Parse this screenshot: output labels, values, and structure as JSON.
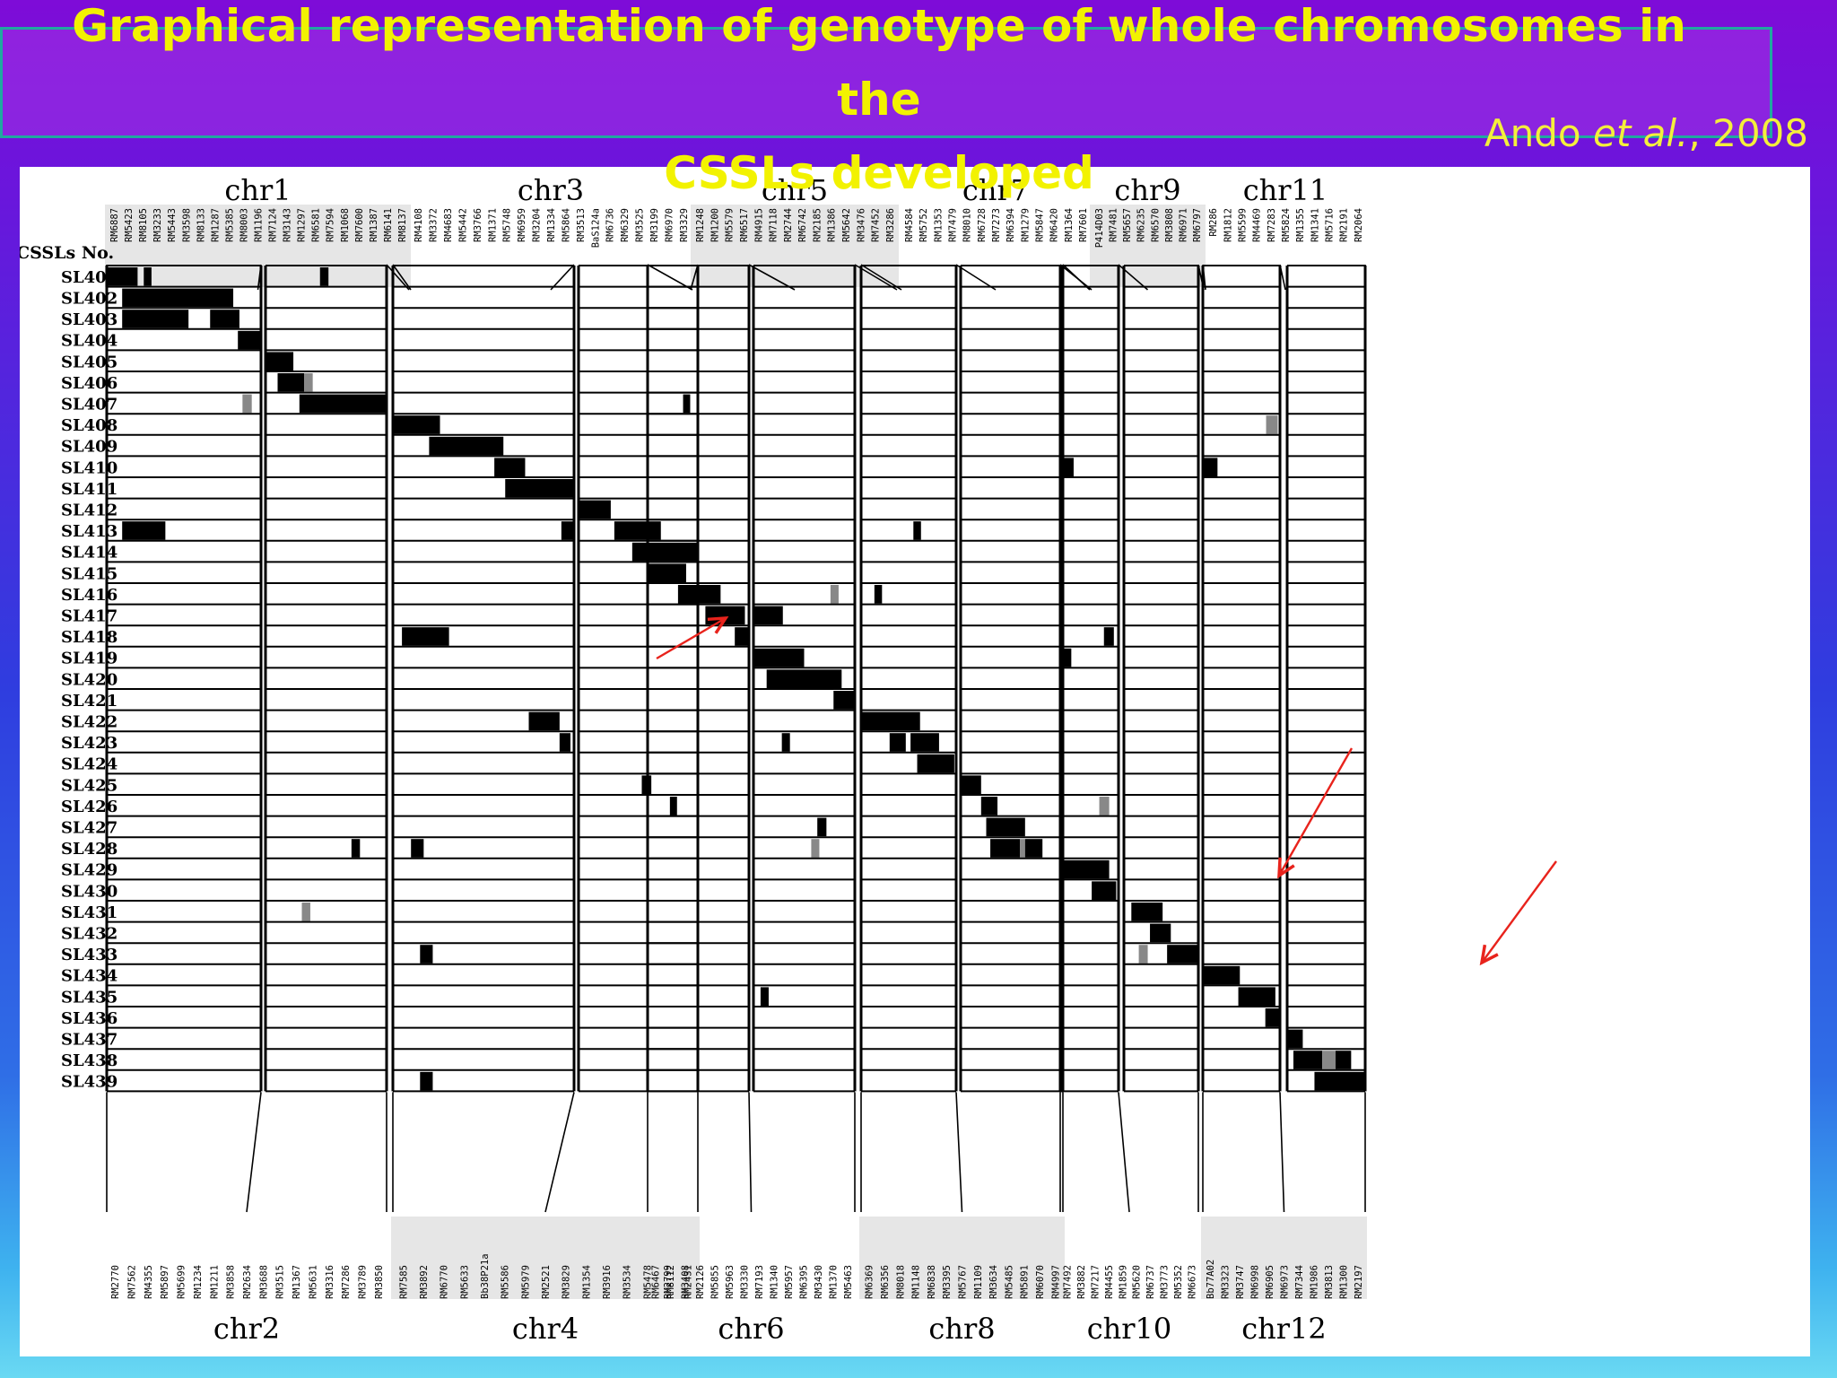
{
  "title": {
    "line1": "Graphical representation of genotype of whole  chromosomes in",
    "line2": "the",
    "line3": "CSSLs developed"
  },
  "citation": {
    "author": "Ando ",
    "etal": "et al.",
    "year": ", 2008"
  },
  "row_header": "CSSLs No.",
  "lines": [
    "SL401",
    "SL402",
    "SL403",
    "SL404",
    "SL405",
    "SL406",
    "SL407",
    "SL408",
    "SL409",
    "SL410",
    "SL411",
    "SL412",
    "SL413",
    "SL414",
    "SL415",
    "SL416",
    "SL417",
    "SL418",
    "SL419",
    "SL420",
    "SL421",
    "SL422",
    "SL423",
    "SL424",
    "SL425",
    "SL426",
    "SL427",
    "SL428",
    "SL429",
    "SL430",
    "SL431",
    "SL432",
    "SL433",
    "SL434",
    "SL435",
    "SL436",
    "SL437",
    "SL438",
    "SL439"
  ],
  "colors": {
    "substituted": "#000000",
    "heterozygous": "#888888",
    "arrow": "#e8231c",
    "label_band": "#e6e6e6"
  },
  "chromosomes": [
    {
      "name": "chr1",
      "markers": [
        "RM6887",
        "RM5423",
        "RM8105",
        "RM3233",
        "RM5443",
        "RM3598",
        "RM8133",
        "RM1287",
        "RM5385",
        "RM8003",
        "RM1196",
        "RM7124",
        "RM3143",
        "RM1297",
        "RM6581",
        "RM7594",
        "RM1068",
        "RM7600",
        "RM1387",
        "RM6141",
        "RM8137"
      ]
    },
    {
      "name": "chr2",
      "markers": [
        "RM2770",
        "RM7562",
        "RM4355",
        "RM5897",
        "RM5699",
        "RM1234",
        "RM1211",
        "RM3858",
        "RM2634",
        "RM3688",
        "RM3515",
        "RM1367",
        "RM5631",
        "RM3316",
        "RM7286",
        "RM3789",
        "RM3850"
      ]
    },
    {
      "name": "chr3",
      "markers": [
        "RM4108",
        "RM3372",
        "RM4683",
        "RM5442",
        "RM3766",
        "RM1371",
        "RM5748",
        "RM6959",
        "RM3204",
        "RM1334",
        "RM5864",
        "RM3513",
        "BaS124a",
        "RM6736",
        "RM6329",
        "RM3525",
        "RM3199",
        "RM6970",
        "RM3329"
      ]
    },
    {
      "name": "chr4",
      "markers": [
        "RM7585",
        "RM3892",
        "RM6770",
        "RM5633",
        "Bb38P21a",
        "RM5586",
        "RM5979",
        "RM2521",
        "RM3829",
        "RM1354",
        "RM3916",
        "RM3534",
        "RM5478",
        "RM2799",
        "RM2431"
      ]
    },
    {
      "name": "chr5",
      "markers": [
        "RM1248",
        "RM1200",
        "RM5579",
        "RM6517",
        "RM4915",
        "RM7118",
        "RM2744",
        "RM6742",
        "RM2185",
        "RM1386",
        "RM5642",
        "RM3476",
        "RM7452",
        "RM3286"
      ]
    },
    {
      "name": "chr6",
      "markers": [
        "RM6467",
        "RM8112",
        "RM3408",
        "RM2126",
        "RM5855",
        "RM5963",
        "RM3330",
        "RM7193",
        "RM1340",
        "RM5957",
        "RM6395",
        "RM3430",
        "RM1370",
        "RM5463"
      ]
    },
    {
      "name": "chr7",
      "markers": [
        "RM4584",
        "RM5752",
        "RM1353",
        "RM7479",
        "RM8010",
        "RM6728",
        "RM7273",
        "RM6394",
        "RM1279",
        "RM5847",
        "RM6420",
        "RM1364",
        "RM7601"
      ]
    },
    {
      "name": "chr8",
      "markers": [
        "RM6369",
        "RM6356",
        "RM8018",
        "RM1148",
        "RM6838",
        "RM3395",
        "RM5767",
        "RM1109",
        "RM3634",
        "RM5485",
        "RM5891",
        "RM6070",
        "RM4997"
      ]
    },
    {
      "name": "chr9",
      "markers": [
        "P414D03",
        "RM7481",
        "RM5657",
        "RM6235",
        "RM6570",
        "RM3808",
        "RM6971",
        "RM6797"
      ]
    },
    {
      "name": "chr10",
      "markers": [
        "RM7492",
        "RM3882",
        "RM7217",
        "RM4455",
        "RM1859",
        "RM5620",
        "RM6737",
        "RM3773",
        "RM5352",
        "RM6673"
      ]
    },
    {
      "name": "chr11",
      "markers": [
        "RM286",
        "RM1812",
        "RM5599",
        "RM4469",
        "RM7283",
        "RM5824",
        "RM1355",
        "RM1341",
        "RM5716",
        "RM2191",
        "RM2064"
      ]
    },
    {
      "name": "chr12",
      "markers": [
        "Bb77A02",
        "RM3323",
        "RM3747",
        "RM6998",
        "RM6905",
        "RM6973",
        "RM7344",
        "RM1986",
        "RM3813",
        "RM1300",
        "RM2197"
      ]
    }
  ],
  "blocks": [
    {
      "line": 0,
      "chr": 0,
      "from": 0,
      "to": 0.2,
      "type": "sub"
    },
    {
      "line": 0,
      "chr": 0,
      "from": 0.24,
      "to": 0.29,
      "type": "sub"
    },
    {
      "line": 0,
      "chr": 1,
      "from": 0.45,
      "to": 0.52,
      "type": "sub"
    },
    {
      "line": 1,
      "chr": 0,
      "from": 0.1,
      "to": 0.82,
      "type": "sub"
    },
    {
      "line": 2,
      "chr": 0,
      "from": 0.1,
      "to": 0.53,
      "type": "sub"
    },
    {
      "line": 2,
      "chr": 0,
      "from": 0.67,
      "to": 0.86,
      "type": "sub"
    },
    {
      "line": 3,
      "chr": 0,
      "from": 0.85,
      "to": 1,
      "type": "sub"
    },
    {
      "line": 4,
      "chr": 1,
      "from": 0,
      "to": 0.23,
      "type": "sub"
    },
    {
      "line": 5,
      "chr": 1,
      "from": 0.1,
      "to": 0.32,
      "type": "sub"
    },
    {
      "line": 5,
      "chr": 1,
      "from": 0.32,
      "to": 0.39,
      "type": "het"
    },
    {
      "line": 6,
      "chr": 0,
      "from": 0.88,
      "to": 0.94,
      "type": "het"
    },
    {
      "line": 6,
      "chr": 1,
      "from": 0.28,
      "to": 1,
      "type": "sub"
    },
    {
      "line": 6,
      "chr": 4,
      "from": 0.35,
      "to": 0.42,
      "type": "sub"
    },
    {
      "line": 7,
      "chr": 2,
      "from": 0,
      "to": 0.26,
      "type": "sub"
    },
    {
      "line": 7,
      "chr": 10,
      "from": 0.82,
      "to": 0.97,
      "type": "het"
    },
    {
      "line": 8,
      "chr": 2,
      "from": 0.2,
      "to": 0.61,
      "type": "sub"
    },
    {
      "line": 9,
      "chr": 2,
      "from": 0.56,
      "to": 0.73,
      "type": "sub"
    },
    {
      "line": 9,
      "chr": 8,
      "from": 0,
      "to": 0.23,
      "type": "sub"
    },
    {
      "line": 9,
      "chr": 10,
      "from": 0,
      "to": 0.19,
      "type": "sub"
    },
    {
      "line": 10,
      "chr": 2,
      "from": 0.62,
      "to": 1,
      "type": "sub"
    },
    {
      "line": 11,
      "chr": 3,
      "from": 0,
      "to": 0.27,
      "type": "sub"
    },
    {
      "line": 12,
      "chr": 0,
      "from": 0.1,
      "to": 0.38,
      "type": "sub"
    },
    {
      "line": 12,
      "chr": 2,
      "from": 0.93,
      "to": 1,
      "type": "sub"
    },
    {
      "line": 12,
      "chr": 3,
      "from": 0.3,
      "to": 0.69,
      "type": "sub"
    },
    {
      "line": 12,
      "chr": 6,
      "from": 0.55,
      "to": 0.63,
      "type": "sub"
    },
    {
      "line": 13,
      "chr": 3,
      "from": 0.45,
      "to": 1,
      "type": "sub"
    },
    {
      "line": 14,
      "chr": 4,
      "from": 0,
      "to": 0.38,
      "type": "sub"
    },
    {
      "line": 15,
      "chr": 4,
      "from": 0.3,
      "to": 0.72,
      "type": "sub"
    },
    {
      "line": 15,
      "chr": 5,
      "from": 0.76,
      "to": 0.84,
      "type": "het"
    },
    {
      "line": 15,
      "chr": 6,
      "from": 0.14,
      "to": 0.22,
      "type": "sub"
    },
    {
      "line": 16,
      "chr": 4,
      "from": 0.57,
      "to": 0.96,
      "type": "sub"
    },
    {
      "line": 16,
      "chr": 5,
      "from": 0,
      "to": 0.29,
      "type": "sub"
    },
    {
      "line": 17,
      "chr": 2,
      "from": 0.05,
      "to": 0.31,
      "type": "sub"
    },
    {
      "line": 17,
      "chr": 4,
      "from": 0.86,
      "to": 1,
      "type": "sub"
    },
    {
      "line": 17,
      "chr": 8,
      "from": 0.75,
      "to": 0.92,
      "type": "sub"
    },
    {
      "line": 18,
      "chr": 5,
      "from": 0,
      "to": 0.5,
      "type": "sub"
    },
    {
      "line": 18,
      "chr": 8,
      "from": 0,
      "to": 0.19,
      "type": "sub"
    },
    {
      "line": 19,
      "chr": 5,
      "from": 0.13,
      "to": 0.87,
      "type": "sub"
    },
    {
      "line": 20,
      "chr": 5,
      "from": 0.79,
      "to": 1,
      "type": "sub"
    },
    {
      "line": 21,
      "chr": 2,
      "from": 0.75,
      "to": 0.92,
      "type": "sub"
    },
    {
      "line": 21,
      "chr": 6,
      "from": 0,
      "to": 0.62,
      "type": "sub"
    },
    {
      "line": 22,
      "chr": 2,
      "from": 0.92,
      "to": 0.98,
      "type": "sub"
    },
    {
      "line": 22,
      "chr": 5,
      "from": 0.28,
      "to": 0.36,
      "type": "sub"
    },
    {
      "line": 22,
      "chr": 6,
      "from": 0.3,
      "to": 0.47,
      "type": "sub"
    },
    {
      "line": 22,
      "chr": 6,
      "from": 0.52,
      "to": 0.82,
      "type": "sub"
    },
    {
      "line": 23,
      "chr": 6,
      "from": 0.59,
      "to": 0.98,
      "type": "sub"
    },
    {
      "line": 24,
      "chr": 3,
      "from": 0.53,
      "to": 0.61,
      "type": "sub"
    },
    {
      "line": 24,
      "chr": 7,
      "from": 0,
      "to": 0.2,
      "type": "sub"
    },
    {
      "line": 25,
      "chr": 4,
      "from": 0.22,
      "to": 0.29,
      "type": "sub"
    },
    {
      "line": 25,
      "chr": 7,
      "from": 0.2,
      "to": 0.36,
      "type": "sub"
    },
    {
      "line": 25,
      "chr": 8,
      "from": 0.67,
      "to": 0.84,
      "type": "het"
    },
    {
      "line": 26,
      "chr": 5,
      "from": 0.63,
      "to": 0.72,
      "type": "sub"
    },
    {
      "line": 26,
      "chr": 7,
      "from": 0.25,
      "to": 0.63,
      "type": "sub"
    },
    {
      "line": 27,
      "chr": 1,
      "from": 0.71,
      "to": 0.78,
      "type": "sub"
    },
    {
      "line": 27,
      "chr": 2,
      "from": 0.1,
      "to": 0.17,
      "type": "sub"
    },
    {
      "line": 27,
      "chr": 5,
      "from": 0.57,
      "to": 0.65,
      "type": "het"
    },
    {
      "line": 27,
      "chr": 7,
      "from": 0.29,
      "to": 0.58,
      "type": "sub"
    },
    {
      "line": 27,
      "chr": 7,
      "from": 0.58,
      "to": 0.63,
      "type": "het"
    },
    {
      "line": 27,
      "chr": 7,
      "from": 0.63,
      "to": 0.8,
      "type": "sub"
    },
    {
      "line": 28,
      "chr": 8,
      "from": 0,
      "to": 0.84,
      "type": "sub"
    },
    {
      "line": 29,
      "chr": 8,
      "from": 0.54,
      "to": 0.96,
      "type": "sub"
    },
    {
      "line": 30,
      "chr": 1,
      "from": 0.3,
      "to": 0.37,
      "type": "het"
    },
    {
      "line": 30,
      "chr": 9,
      "from": 0.1,
      "to": 0.52,
      "type": "sub"
    },
    {
      "line": 31,
      "chr": 9,
      "from": 0.35,
      "to": 0.63,
      "type": "sub"
    },
    {
      "line": 32,
      "chr": 2,
      "from": 0.15,
      "to": 0.22,
      "type": "sub"
    },
    {
      "line": 32,
      "chr": 9,
      "from": 0.2,
      "to": 0.32,
      "type": "het"
    },
    {
      "line": 32,
      "chr": 9,
      "from": 0.58,
      "to": 1,
      "type": "sub"
    },
    {
      "line": 33,
      "chr": 10,
      "from": 0,
      "to": 0.48,
      "type": "sub"
    },
    {
      "line": 34,
      "chr": 5,
      "from": 0.07,
      "to": 0.15,
      "type": "sub"
    },
    {
      "line": 34,
      "chr": 10,
      "from": 0.46,
      "to": 0.94,
      "type": "sub"
    },
    {
      "line": 35,
      "chr": 10,
      "from": 0.81,
      "to": 1,
      "type": "sub"
    },
    {
      "line": 36,
      "chr": 11,
      "from": 0,
      "to": 0.2,
      "type": "sub"
    },
    {
      "line": 37,
      "chr": 11,
      "from": 0.08,
      "to": 0.45,
      "type": "sub"
    },
    {
      "line": 37,
      "chr": 11,
      "from": 0.45,
      "to": 0.62,
      "type": "het"
    },
    {
      "line": 37,
      "chr": 11,
      "from": 0.62,
      "to": 0.82,
      "type": "sub"
    },
    {
      "line": 38,
      "chr": 2,
      "from": 0.15,
      "to": 0.22,
      "type": "sub"
    },
    {
      "line": 38,
      "chr": 11,
      "from": 0.35,
      "to": 1,
      "type": "sub"
    }
  ]
}
